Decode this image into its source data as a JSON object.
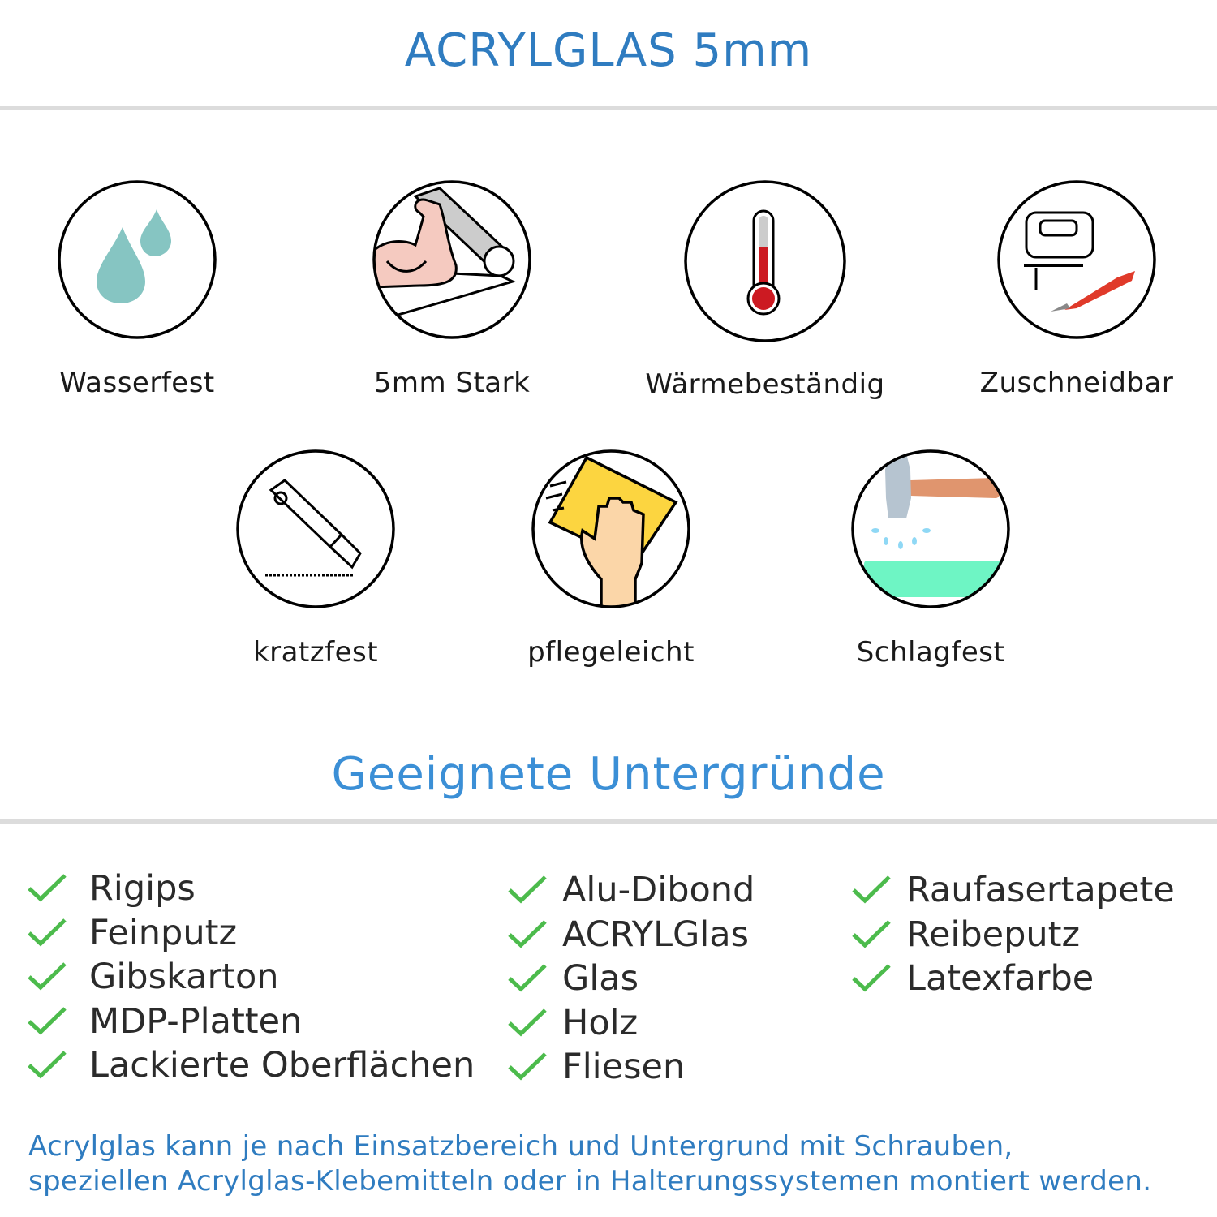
{
  "header": {
    "title": "ACRYLGLAS 5mm"
  },
  "features": [
    {
      "label": "Wasserfest",
      "icon": "water-drops-icon"
    },
    {
      "label": "5mm Stark",
      "icon": "flexed-arm-icon"
    },
    {
      "label": "Wärmebeständig",
      "icon": "thermometer-icon"
    },
    {
      "label": "Zuschneidbar",
      "icon": "jigsaw-icon"
    },
    {
      "label": "kratzfest",
      "icon": "cutter-knife-icon"
    },
    {
      "label": "pflegeleicht",
      "icon": "cleaning-hand-icon"
    },
    {
      "label": "Schlagfest",
      "icon": "hammer-icon"
    }
  ],
  "surfaces": {
    "title": "Geeignete Untergründe",
    "columns": [
      [
        "Rigips",
        "Feinputz",
        "Gibskarton",
        "MDP-Platten",
        "Lackierte Oberflächen"
      ],
      [
        "Alu-Dibond",
        "ACRYLGlas",
        "Glas",
        "Holz",
        "Fliesen"
      ],
      [
        "Raufasertapete",
        "Reibeputz",
        "Latexfarbe"
      ]
    ]
  },
  "footer": {
    "line1": "Acrylglas kann je nach Einsatzbereich und Untergrund mit Schrauben,",
    "line2": "speziellen Acrylglas-Klebemitteln oder in Halterungssystemen montiert werden."
  },
  "colors": {
    "accent": "#2f7cc0",
    "check": "#4cbb4c",
    "divider": "#dcdcdc"
  }
}
